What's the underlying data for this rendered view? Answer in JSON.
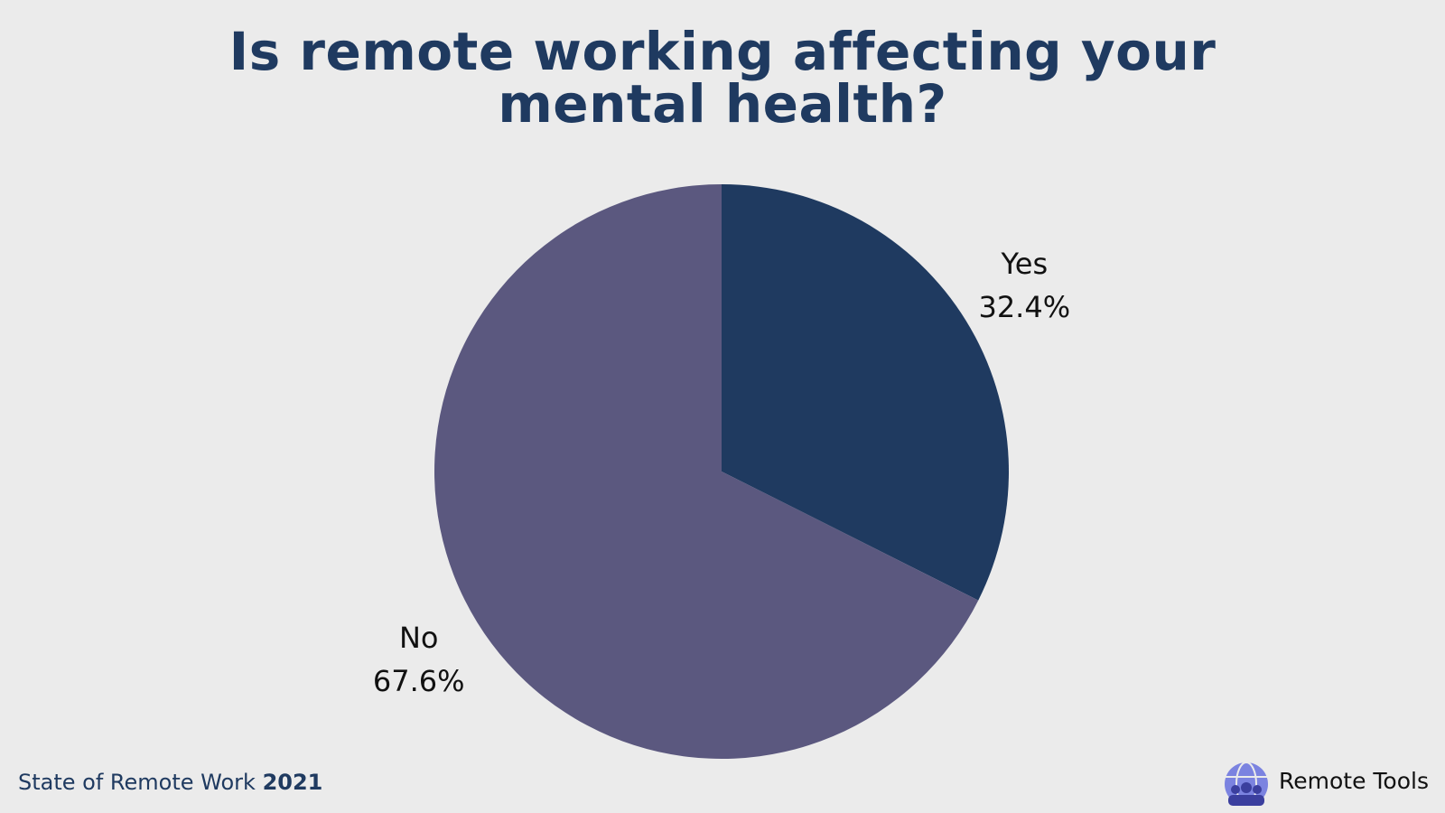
{
  "chart_data": {
    "type": "pie",
    "title": "Is remote working affecting your mental health?",
    "categories": [
      "Yes",
      "No"
    ],
    "values": [
      32.4,
      67.6
    ],
    "value_labels": [
      "32.4%",
      "67.6%"
    ],
    "colors": [
      "#1f3a60",
      "#5b587f"
    ]
  },
  "footer": {
    "source": "State of Remote Work",
    "year": "2021",
    "brand": "Remote Tools"
  }
}
